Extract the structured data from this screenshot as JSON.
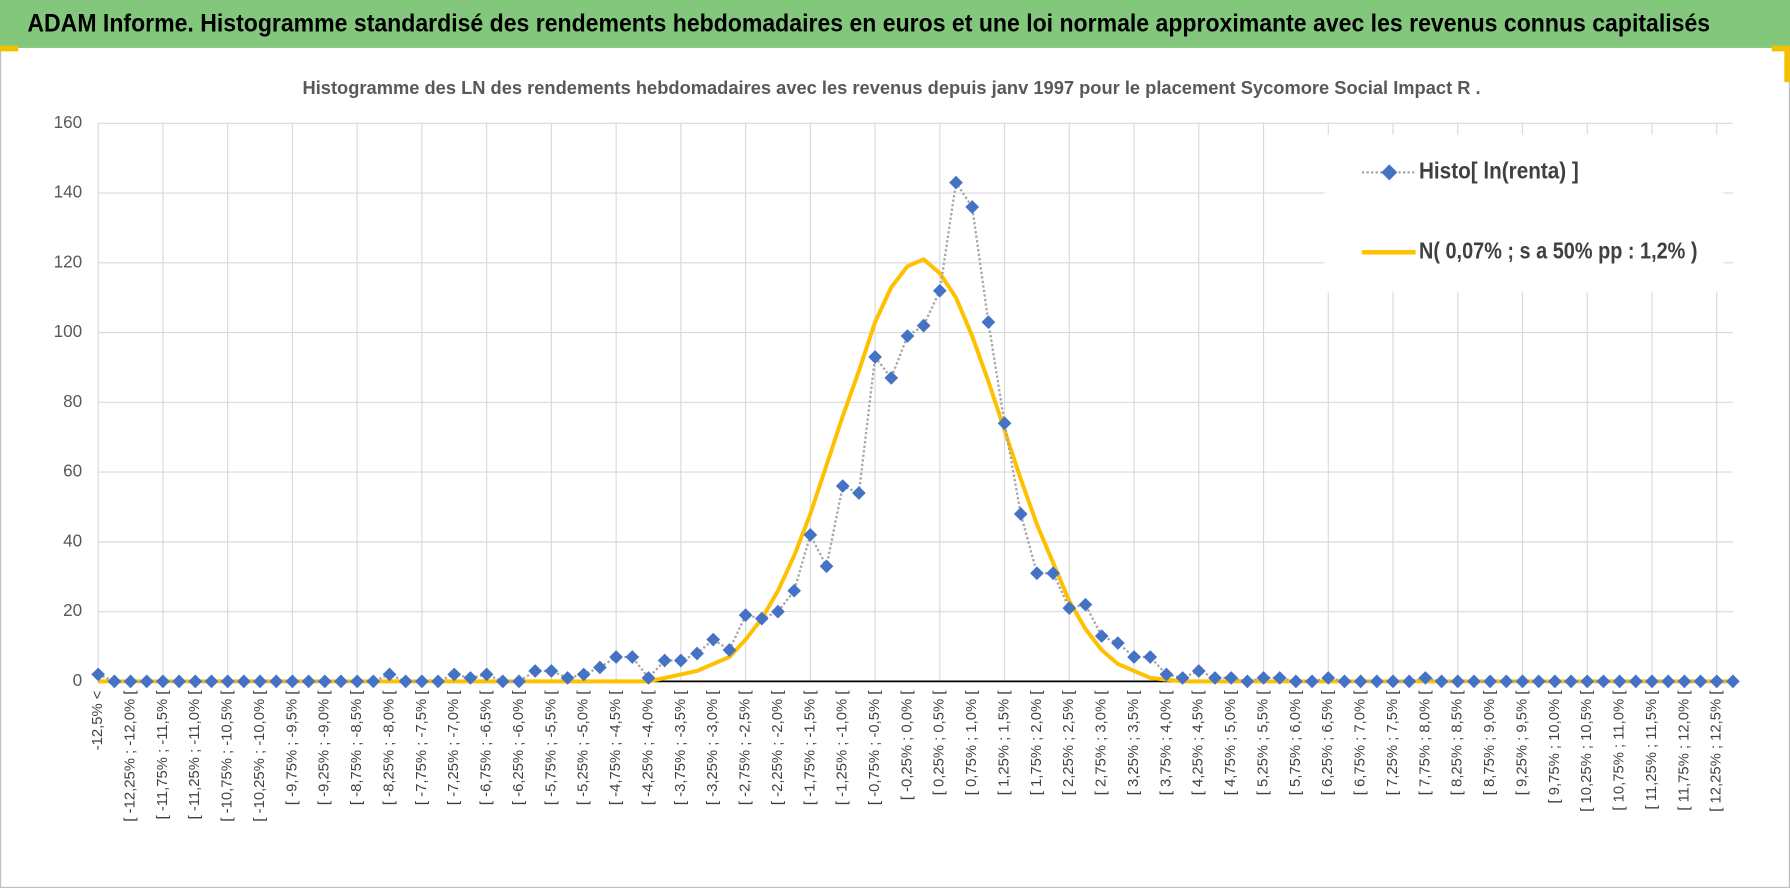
{
  "header": {
    "title": "ADAM Informe. Histogramme standardisé des rendements hebdomadaires en euros et une loi normale approximante avec les revenus connus capitalisés"
  },
  "chart_data": {
    "type": "line",
    "title": "Histogramme des LN des rendements hebdomadaires avec les revenus depuis janv 1997 pour le placement Sycomore Social Impact R .",
    "categories": [
      "-12,5% <",
      null,
      "[ -12,25% ; -12,0% [",
      null,
      "[ -11,75% ; -11,5% [",
      null,
      "[ -11,25% ; -11,0% [",
      null,
      "[ -10,75% ; -10,5% [",
      null,
      "[ -10,25% ; -10,0% [",
      null,
      "[ -9,75% ; -9,5% [",
      null,
      "[ -9,25% ; -9,0% [",
      null,
      "[ -8,75% ; -8,5% [",
      null,
      "[ -8,25% ; -8,0% [",
      null,
      "[ -7,75% ; -7,5% [",
      null,
      "[ -7,25% ; -7,0% [",
      null,
      "[ -6,75% ; -6,5% [",
      null,
      "[ -6,25% ; -6,0% [",
      null,
      "[ -5,75% ; -5,5% [",
      null,
      "[ -5,25% ; -5,0% [",
      null,
      "[ -4,75% ; -4,5% [",
      null,
      "[ -4,25% ; -4,0% [",
      null,
      "[ -3,75% ; -3,5% [",
      null,
      "[ -3,25% ; -3,0% [",
      null,
      "[ -2,75% ; -2,5% [",
      null,
      "[ -2,25% ; -2,0% [",
      null,
      "[ -1,75% ; -1,5% [",
      null,
      "[ -1,25% ; -1,0% [",
      null,
      "[ -0,75% ; -0,5% [",
      null,
      "[ -0,25% ; 0,0% [",
      null,
      "[ 0,25% ; 0,5% [",
      null,
      "[ 0,75% ; 1,0% [",
      null,
      "[ 1,25% ; 1,5% [",
      null,
      "[ 1,75% ; 2,0% [",
      null,
      "[ 2,25% ; 2,5% [",
      null,
      "[ 2,75% ; 3,0% [",
      null,
      "[ 3,25% ; 3,5% [",
      null,
      "[ 3,75% ; 4,0% [",
      null,
      "[ 4,25% ; 4,5% [",
      null,
      "[ 4,75% ; 5,0% [",
      null,
      "[ 5,25% ; 5,5% [",
      null,
      "[ 5,75% ; 6,0% [",
      null,
      "[ 6,25% ; 6,5% [",
      null,
      "[ 6,75% ; 7,0% [",
      null,
      "[ 7,25% ; 7,5% [",
      null,
      "[ 7,75% ; 8,0% [",
      null,
      "[ 8,25% ; 8,5% [",
      null,
      "[ 8,75% ; 9,0% [",
      null,
      "[ 9,25% ; 9,5% [",
      null,
      "[ 9,75% ; 10,0% [",
      null,
      "[ 10,25% ; 10,5% [",
      null,
      "[ 10,75% ; 11,0% [",
      null,
      "[ 11,25% ; 11,5% [",
      null,
      "[ 11,75% ; 12,0% [",
      null,
      "[ 12,25% ; 12,5% [",
      null
    ],
    "series": [
      {
        "name": "Histo[ ln(renta) ]",
        "color": "#4472c4",
        "marker": "diamond",
        "line_color": "#a5a5a5",
        "line_style": "dotted",
        "values": [
          2,
          0,
          0,
          0,
          0,
          0,
          0,
          0,
          0,
          0,
          0,
          0,
          0,
          0,
          0,
          0,
          0,
          0,
          2,
          0,
          0,
          0,
          2,
          1,
          2,
          0,
          0,
          3,
          3,
          1,
          2,
          4,
          7,
          7,
          1,
          6,
          6,
          8,
          12,
          9,
          19,
          18,
          20,
          26,
          42,
          33,
          56,
          54,
          93,
          87,
          99,
          102,
          112,
          143,
          136,
          103,
          74,
          48,
          31,
          31,
          21,
          22,
          13,
          11,
          7,
          7,
          2,
          1,
          3,
          1,
          1,
          0,
          1,
          1,
          0,
          0,
          1,
          0,
          0,
          0,
          0,
          0,
          1,
          0,
          0,
          0,
          0,
          0,
          0,
          0,
          0,
          0,
          0,
          0,
          0,
          0,
          0,
          0,
          0,
          0,
          0,
          0
        ]
      },
      {
        "name": "N( 0,07% ; s a 50% pp : 1,2% )",
        "color": "#ffc000",
        "marker": null,
        "values": [
          0,
          0,
          0,
          0,
          0,
          0,
          0,
          0,
          0,
          0,
          0,
          0,
          0,
          0,
          0,
          0,
          0,
          0,
          0,
          0,
          0,
          0,
          0,
          0,
          0,
          0,
          0,
          0,
          0,
          0,
          0,
          0,
          0,
          0,
          0,
          1,
          2,
          3,
          5,
          7,
          12,
          18,
          26,
          36,
          48,
          62,
          76,
          89,
          103,
          113,
          119,
          121,
          117,
          110,
          99,
          86,
          72,
          58,
          45,
          34,
          23,
          15,
          9,
          5,
          3,
          1,
          0.5,
          0,
          0,
          0,
          0,
          0,
          0,
          0,
          0,
          0,
          0,
          0,
          0,
          0,
          0,
          0,
          0,
          0,
          0,
          0,
          0,
          0,
          0,
          0,
          0,
          0,
          0,
          0,
          0,
          0,
          0,
          0,
          0,
          0,
          0,
          0
        ]
      }
    ],
    "ylim": [
      0,
      160
    ],
    "yticks": [
      0,
      20,
      40,
      60,
      80,
      100,
      120,
      140,
      160
    ],
    "grid": true,
    "legend": "upper right"
  }
}
